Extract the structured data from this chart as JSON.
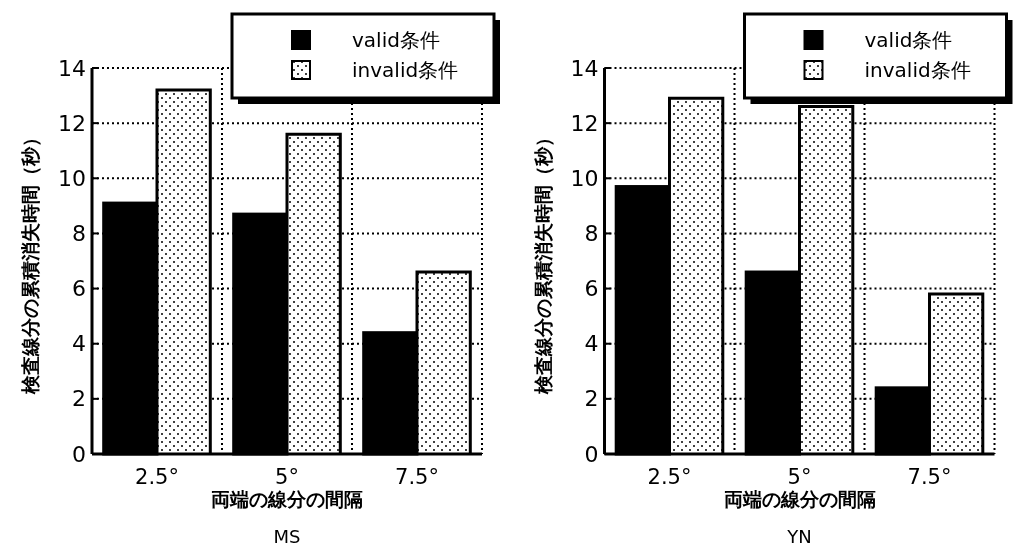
{
  "chart_data": [
    {
      "type": "bar",
      "title": "MS",
      "xlabel": "両端の線分の間隔",
      "ylabel": "検査線分の累積消失時間（秒）",
      "categories": [
        "2.5°",
        "5°",
        "7.5°"
      ],
      "series": [
        {
          "name": "valid条件",
          "color": "#000000",
          "values": [
            9.1,
            8.7,
            4.4
          ]
        },
        {
          "name": "invalid条件",
          "color": "#ffffff",
          "values": [
            13.2,
            11.6,
            6.6
          ]
        }
      ],
      "ylim": [
        0,
        14
      ],
      "yticks": [
        0,
        2,
        4,
        6,
        8,
        10,
        12,
        14
      ],
      "grid": true,
      "legend": "top right"
    },
    {
      "type": "bar",
      "title": "YN",
      "xlabel": "両端の線分の間隔",
      "ylabel": "検査線分の累積消失時間（秒）",
      "categories": [
        "2.5°",
        "5°",
        "7.5°"
      ],
      "series": [
        {
          "name": "valid条件",
          "color": "#000000",
          "values": [
            9.7,
            6.6,
            2.4
          ]
        },
        {
          "name": "invalid条件",
          "color": "#ffffff",
          "values": [
            12.9,
            12.6,
            5.8
          ]
        }
      ],
      "ylim": [
        0,
        14
      ],
      "yticks": [
        0,
        2,
        4,
        6,
        8,
        10,
        12,
        14
      ],
      "grid": true,
      "legend": "top right"
    }
  ]
}
